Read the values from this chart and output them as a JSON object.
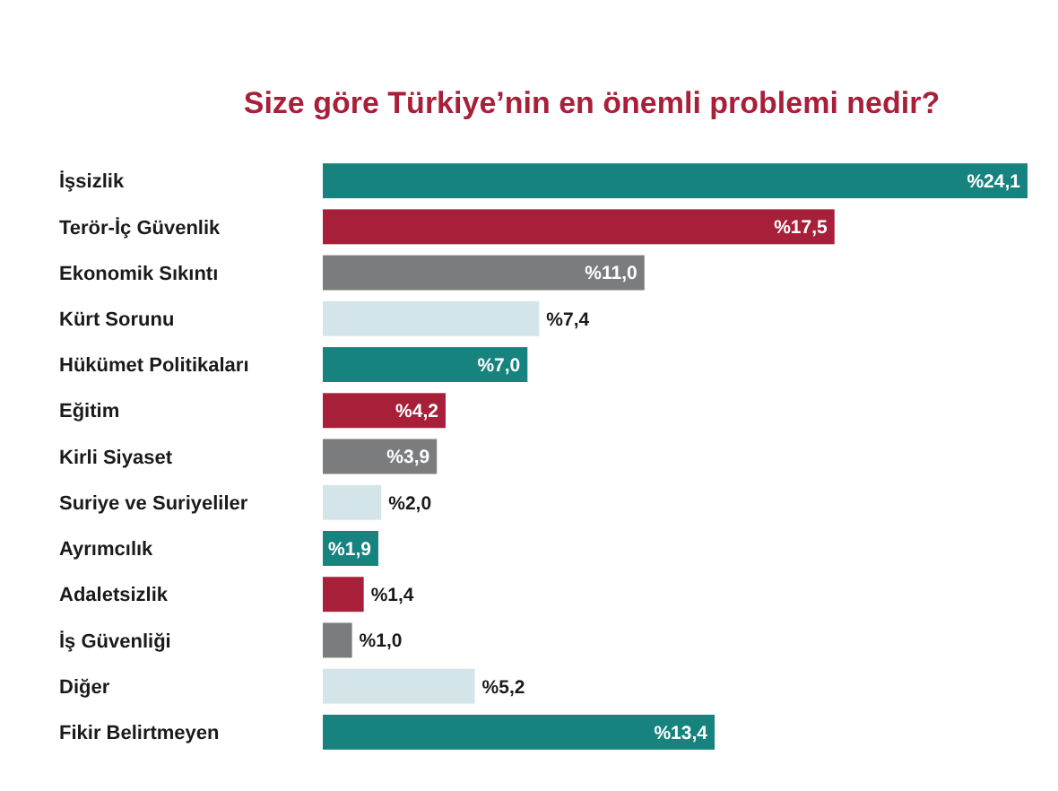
{
  "chart_data": {
    "type": "bar",
    "orientation": "horizontal",
    "title": "Size göre Türkiye’nin en önemli problemi nedir?",
    "categories": [
      "İşsizlik",
      "Terör-İç Güvenlik",
      "Ekonomik Sıkıntı",
      "Kürt Sorunu",
      "Hükümet Politikaları",
      "Eğitim",
      "Kirli Siyaset",
      "Suriye ve Suriyeliler",
      "Ayrımcılık",
      "Adaletsizlik",
      "İş Güvenliği",
      "Diğer",
      "Fikir Belirtmeyen"
    ],
    "values": [
      24.1,
      17.5,
      11.0,
      7.4,
      7.0,
      4.2,
      3.9,
      2.0,
      1.9,
      1.4,
      1.0,
      5.2,
      13.4
    ],
    "colors": [
      "#17837f",
      "#a81f3a",
      "#7a7c7e",
      "#d4e5ea",
      "#17837f",
      "#a81f3a",
      "#7a7c7e",
      "#d4e5ea",
      "#17837f",
      "#a81f3a",
      "#7a7c7e",
      "#d4e5ea",
      "#17837f"
    ],
    "value_labels": [
      "%24,1",
      "%17,5",
      "%11,0",
      "%7,4",
      "%7,0",
      "%4,2",
      "%3,9",
      "%2,0",
      "%1,9",
      "%1,4",
      "%1,0",
      "%5,2",
      "%13,4"
    ]
  }
}
